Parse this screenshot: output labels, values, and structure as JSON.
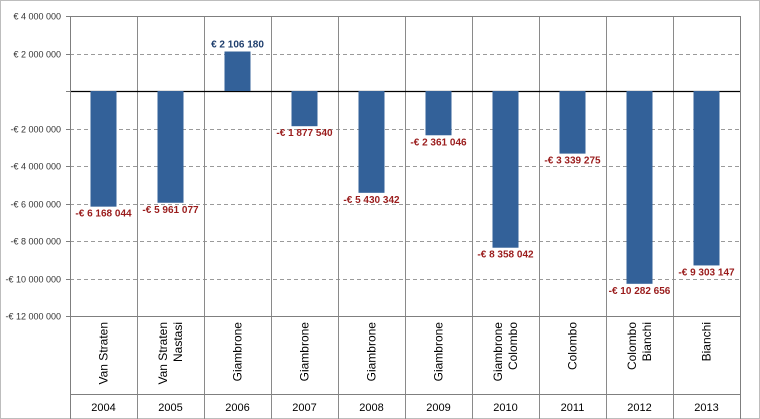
{
  "chart_data": {
    "type": "bar",
    "colors": {
      "bar": "#336199",
      "negative_label": "#9a1c1c",
      "positive_label": "#1f3f6e"
    },
    "yticks": [
      "€ 4 000 000",
      "€ 2 000 000",
      "",
      "-€ 2 000 000",
      "-€ 4 000 000",
      "-€ 6 000 000",
      "-€ 8 000 000",
      "-€ 10 000 000",
      "-€ 12 000 000"
    ],
    "ylim": [
      -12000000,
      4000000
    ],
    "grid": true,
    "years": [
      "2004",
      "2005",
      "2006",
      "2007",
      "2008",
      "2009",
      "2010",
      "2011",
      "2012",
      "2013"
    ],
    "categories": [
      [
        "Van Straten"
      ],
      [
        "Van Straten",
        "Nastasi"
      ],
      [
        "Giambrone"
      ],
      [
        "Giambrone"
      ],
      [
        "Giambrone"
      ],
      [
        "Giambrone"
      ],
      [
        "Giambrone",
        "Colombo"
      ],
      [
        "Colombo"
      ],
      [
        "Colombo",
        "Bianchi"
      ],
      [
        "Bianchi"
      ]
    ],
    "values": [
      -6168044,
      -5961077,
      2106180,
      -1877540,
      -5430342,
      -2361046,
      -8358042,
      -3339275,
      -10282656,
      -9303147
    ],
    "data_labels": [
      "-€ 6 168 044",
      "-€ 5 961 077",
      "€ 2 106 180",
      "-€ 1 877 540",
      "-€ 5 430 342",
      "-€ 2 361 046",
      "-€ 8 358 042",
      "-€ 3 339 275",
      "-€ 10 282 656",
      "-€ 9 303 147"
    ]
  }
}
